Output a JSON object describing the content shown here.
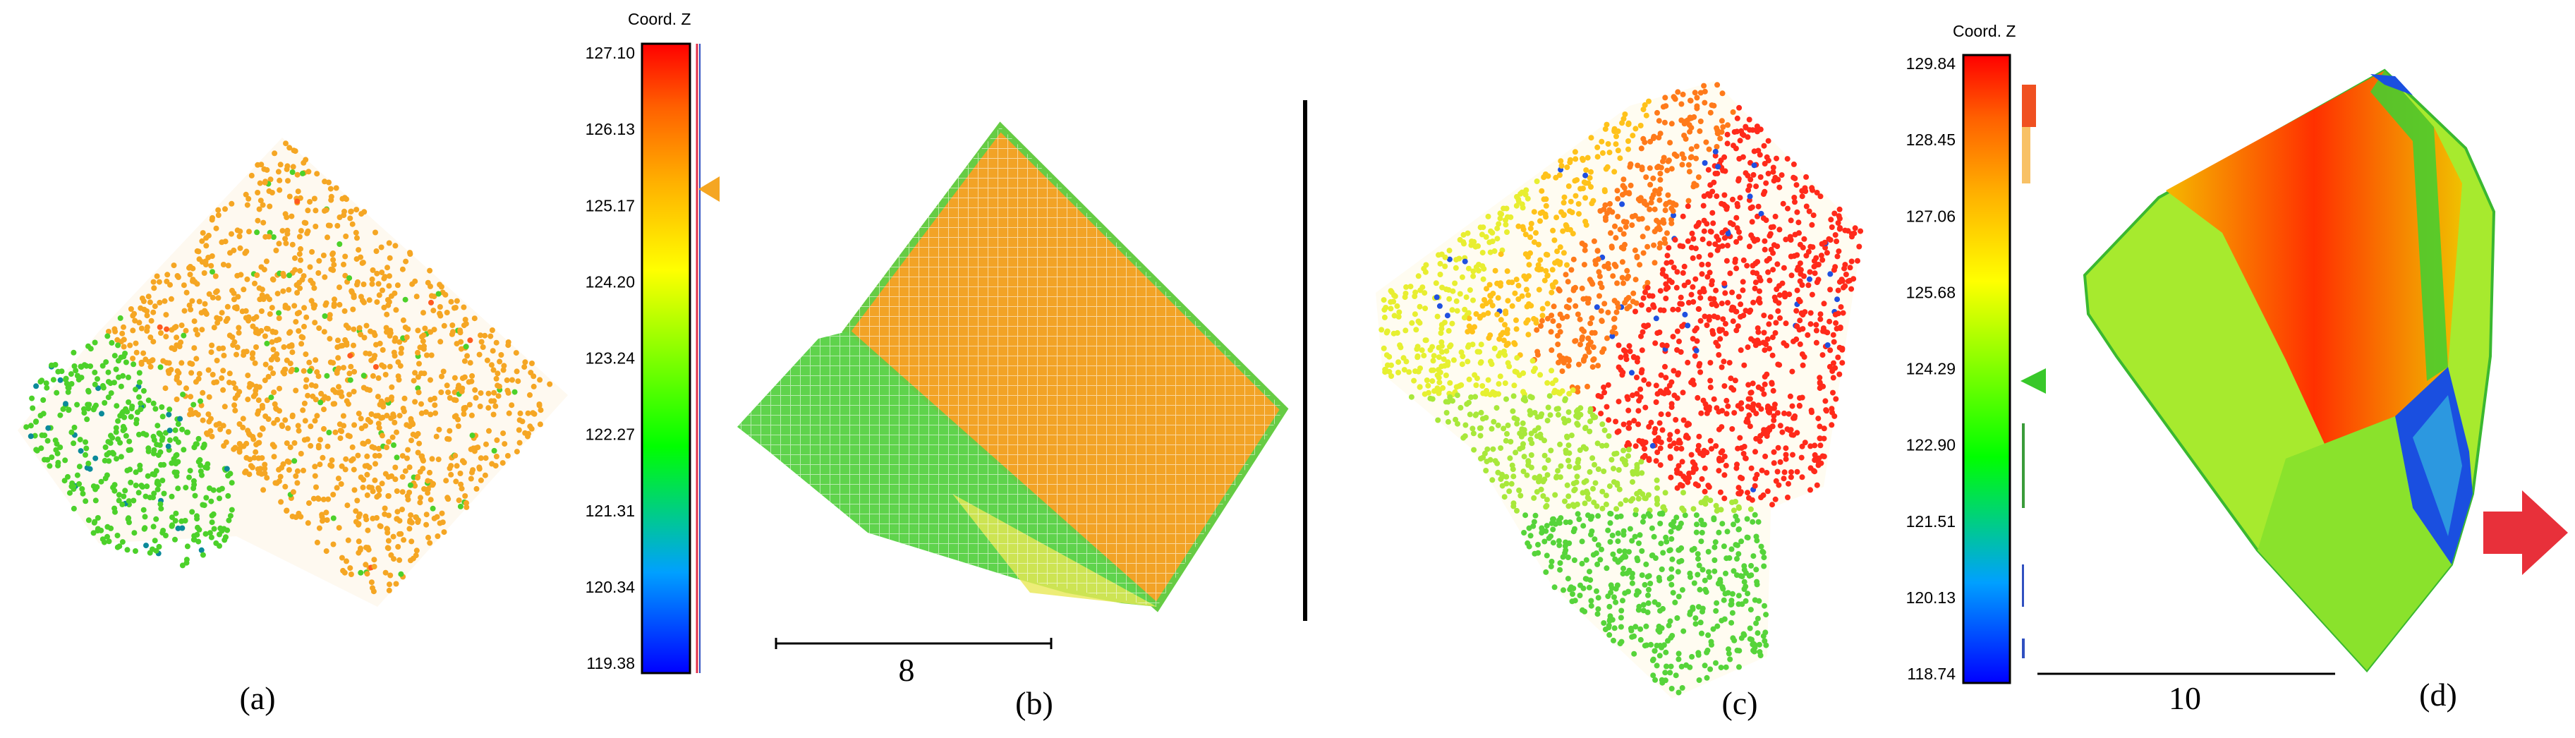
{
  "colors": {
    "ramp": [
      "#0000ff",
      "#00a0ff",
      "#00ff00",
      "#80ff00",
      "#ffff00",
      "#ffb000",
      "#ff6000",
      "#ff0000"
    ],
    "point_orange": "#f5a623",
    "point_green": "#4cd12a",
    "arrow": "#e8303a",
    "divider": "#000000"
  },
  "colorbar_left": {
    "title": "Coord. Z",
    "ticks": [
      "127.10",
      "126.13",
      "125.17",
      "124.20",
      "123.24",
      "122.27",
      "121.31",
      "120.34",
      "119.38"
    ]
  },
  "colorbar_right": {
    "title": "Coord. Z",
    "ticks": [
      "129.84",
      "128.45",
      "127.06",
      "125.68",
      "124.29",
      "122.90",
      "121.51",
      "120.13",
      "118.74"
    ]
  },
  "scalebars": {
    "b": "8",
    "d": "10"
  },
  "panels": {
    "a": "(a)",
    "b": "(b)",
    "c": "(c)",
    "d": "(d)"
  },
  "icons": {
    "histogram_marker": "triangle-marker-icon",
    "callout": "right-pointing-arrow-icon"
  }
}
